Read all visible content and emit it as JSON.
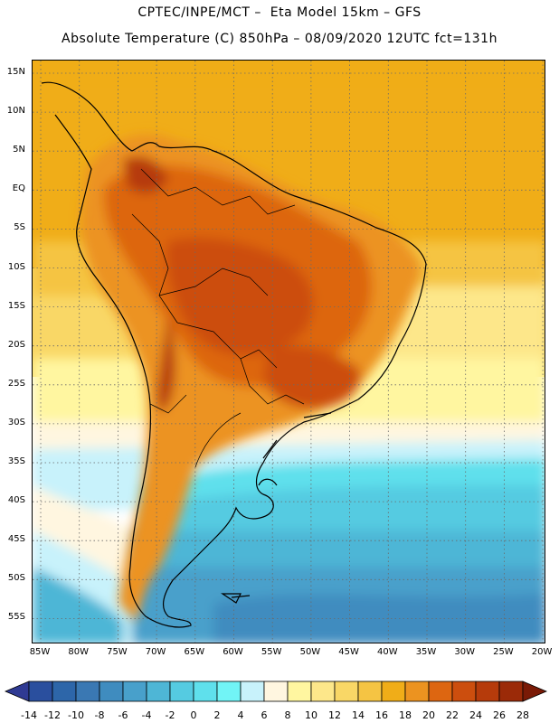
{
  "title": {
    "line1": "CPTEC/INPE/MCT –  Eta Model 15km – GFS",
    "line2": "Absolute Temperature (C) 850hPa – 08/09/2020 12UTC fct=131h"
  },
  "map": {
    "projection": "lat-lon",
    "lon_range": [
      "86W",
      "20W"
    ],
    "lat_range": [
      "58S",
      "17N"
    ],
    "grid": "dotted",
    "lat_labels": [
      "15N",
      "10N",
      "5N",
      "EQ",
      "5S",
      "10S",
      "15S",
      "20S",
      "25S",
      "30S",
      "35S",
      "40S",
      "45S",
      "50S",
      "55S"
    ],
    "lon_labels": [
      "85W",
      "80W",
      "75W",
      "70W",
      "65W",
      "60W",
      "55W",
      "50W",
      "45W",
      "40W",
      "35W",
      "30W",
      "25W",
      "20W"
    ]
  },
  "colorbar": {
    "labels": [
      "-14",
      "-12",
      "-10",
      "-8",
      "-6",
      "-4",
      "-2",
      "0",
      "2",
      "4",
      "6",
      "8",
      "10",
      "12",
      "14",
      "16",
      "18",
      "20",
      "22",
      "24",
      "26",
      "28"
    ],
    "colors": [
      "#2f3a93",
      "#2a4f9e",
      "#2d66a9",
      "#3a78b3",
      "#3f8cbf",
      "#48a0cb",
      "#4eb6d6",
      "#55cbe1",
      "#5fe0ec",
      "#71f4f6",
      "#c8f2fb",
      "#fff6e0",
      "#fff6a0",
      "#fde78a",
      "#f9d766",
      "#f5c443",
      "#f0ad18",
      "#ec9320",
      "#dd6611",
      "#cc4e0e",
      "#b63b0b",
      "#9b2a08",
      "#7a1a06"
    ]
  }
}
